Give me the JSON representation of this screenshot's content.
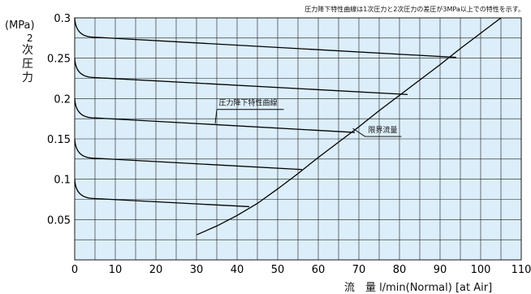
{
  "chart_data": {
    "type": "line",
    "note": "圧力降下特性曲線は1次圧力と2次圧力の差圧が3MPa以上での特性を示す。",
    "y_unit_label": "(MPa)",
    "y_label_prefix": "2",
    "y_label_main": "次圧力",
    "x_label": "流　量 l/min(Normal) [at Air]",
    "xlim": [
      0,
      110
    ],
    "ylim": [
      0,
      0.3
    ],
    "x_ticks": [
      0,
      10,
      20,
      30,
      40,
      50,
      60,
      70,
      80,
      90,
      100,
      110
    ],
    "y_ticks": [
      0.05,
      0.1,
      0.15,
      0.2,
      0.25,
      0.3
    ],
    "y_tick_labels": [
      "0.05",
      "0.1",
      "0.15",
      "0.2",
      "0.25",
      "0.3"
    ],
    "grid": true,
    "annotations": {
      "pressure_drop_curve": "圧力降下特性曲線",
      "limit_flow": "限界流量"
    },
    "pressure_drop_curves": [
      {
        "start_y": 0.3,
        "knee_x": 5,
        "knee_y": 0.276,
        "end_x": 94,
        "end_y": 0.251
      },
      {
        "start_y": 0.25,
        "knee_x": 5,
        "knee_y": 0.226,
        "end_x": 82,
        "end_y": 0.205
      },
      {
        "start_y": 0.2,
        "knee_x": 5,
        "knee_y": 0.176,
        "end_x": 69,
        "end_y": 0.158
      },
      {
        "start_y": 0.15,
        "knee_x": 5,
        "knee_y": 0.126,
        "end_x": 56,
        "end_y": 0.112
      },
      {
        "start_y": 0.1,
        "knee_x": 5,
        "knee_y": 0.076,
        "end_x": 43,
        "end_y": 0.066
      }
    ],
    "limit_flow_line": {
      "x": [
        30,
        35,
        40,
        45,
        50,
        55,
        60,
        65,
        70,
        75,
        80,
        85,
        90,
        95,
        100,
        105
      ],
      "y": [
        0.031,
        0.042,
        0.055,
        0.07,
        0.088,
        0.107,
        0.127,
        0.146,
        0.165,
        0.185,
        0.204,
        0.223,
        0.242,
        0.262,
        0.281,
        0.3
      ]
    },
    "colors": {
      "plot_background": "#dceefa",
      "grid": "#1a1a1a",
      "line": "#000000"
    }
  }
}
